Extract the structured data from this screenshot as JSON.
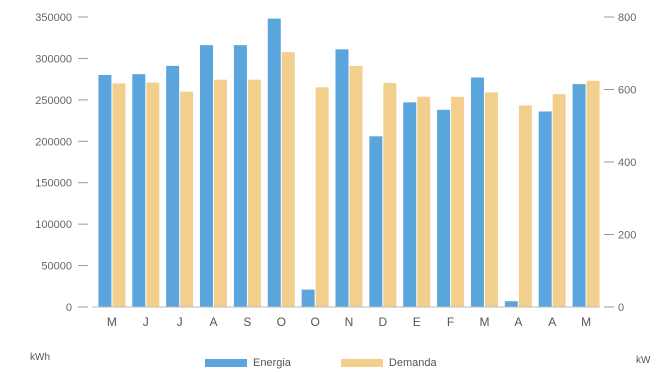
{
  "chart_data": {
    "type": "bar",
    "categories": [
      "M",
      "J",
      "J",
      "A",
      "S",
      "O",
      "O",
      "N",
      "D",
      "E",
      "F",
      "M",
      "A",
      "A",
      "M"
    ],
    "series": [
      {
        "name": "Energia",
        "axis": "left",
        "color": "#5aa6dc",
        "values": [
          280000,
          281000,
          291000,
          316000,
          316000,
          348000,
          21000,
          311000,
          206000,
          247000,
          238000,
          277000,
          7000,
          236000,
          269000
        ]
      },
      {
        "name": "Demanda",
        "axis": "right",
        "color": "#f2cf8c",
        "values": [
          617,
          619,
          594,
          627,
          627,
          703,
          606,
          665,
          618,
          580,
          580,
          592,
          556,
          587,
          624
        ]
      }
    ],
    "y_left": {
      "ticks": [
        "0",
        "50000",
        "100000",
        "150000",
        "200000",
        "250000",
        "300000",
        "350000"
      ],
      "min": 0,
      "max": 350000,
      "unit": "kWh"
    },
    "y_right": {
      "ticks": [
        "0",
        "200",
        "400",
        "600",
        "800"
      ],
      "min": 0,
      "max": 800,
      "unit": "kW"
    },
    "legend_position": "bottom",
    "grid": false
  }
}
